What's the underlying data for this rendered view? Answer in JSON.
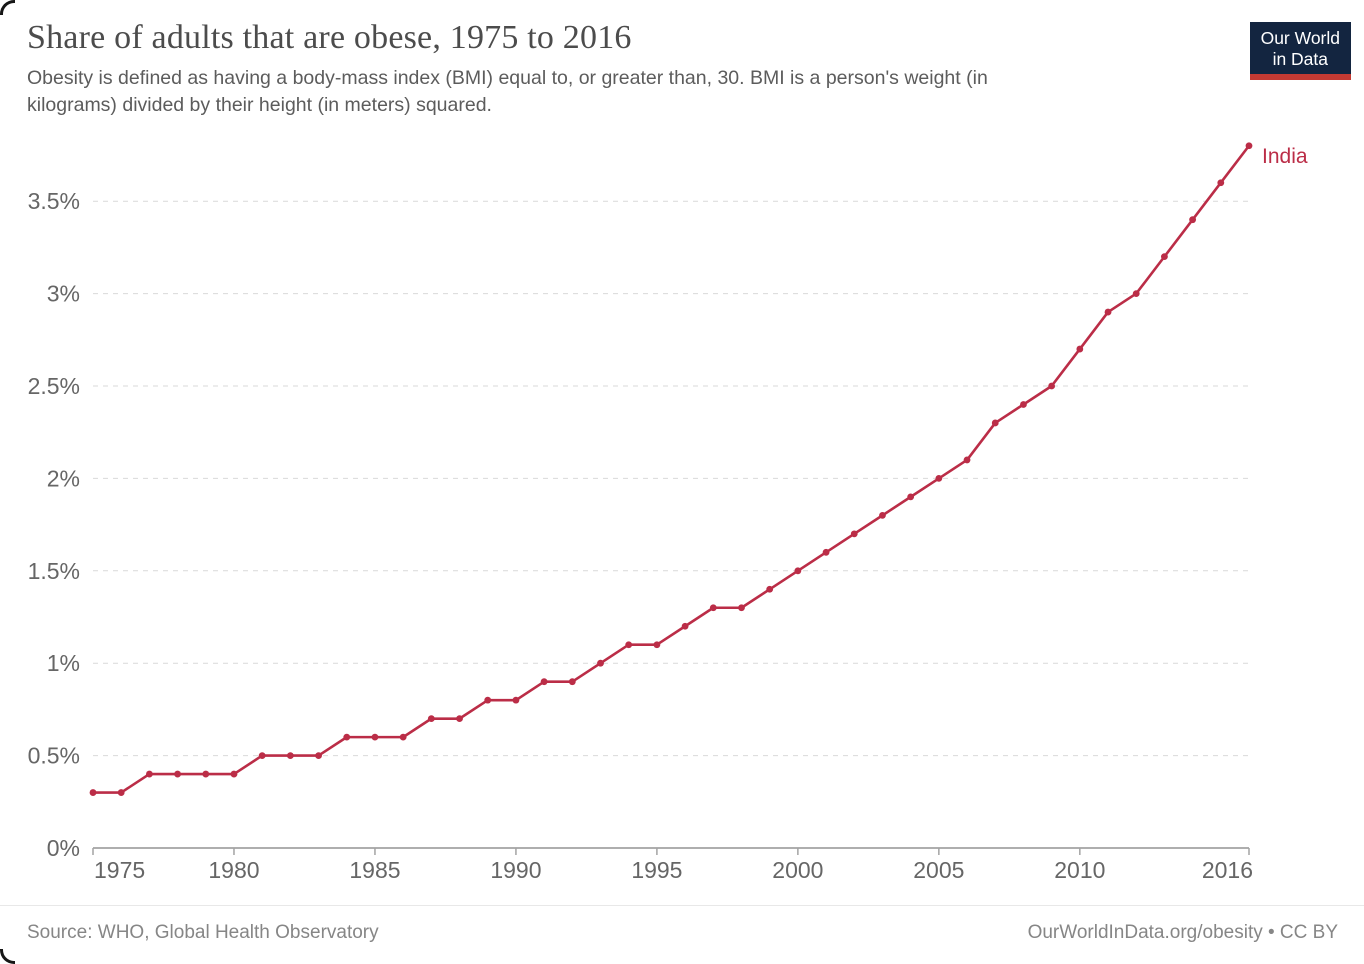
{
  "header": {
    "title": "Share of adults that are obese, 1975 to 2016",
    "subtitle_lines": [
      "Obesity is defined as having a body-mass index (BMI) equal to, or greater than, 30. BMI is a person's weight (in",
      "kilograms) divided by their height (in meters) squared."
    ],
    "logo": {
      "line1": "Our World",
      "line2": "in Data"
    }
  },
  "footer": {
    "source": "Source: WHO, Global Health Observatory",
    "attribution": "OurWorldInData.org/obesity • CC BY"
  },
  "colors": {
    "series_red": "#bb2d47",
    "logo_background": "#132540",
    "logo_stripe": "#c43a33",
    "grid": "#d9d9d9",
    "axis": "#a3a3a3",
    "tick_text": "#666666"
  },
  "chart_data": {
    "type": "line",
    "title": "Share of adults that are obese, 1975 to 2016",
    "xlabel": "",
    "ylabel": "",
    "xlim": [
      1975,
      2016
    ],
    "ylim": [
      0,
      3.8
    ],
    "grid": "horizontal-dashed",
    "legend": "end-of-line-label",
    "x_ticks": [
      1975,
      1980,
      1985,
      1990,
      1995,
      2000,
      2005,
      2010,
      2016
    ],
    "y_ticks": [
      0,
      0.5,
      1,
      1.5,
      2,
      2.5,
      3,
      3.5
    ],
    "y_tick_suffix": "%",
    "x": [
      1975,
      1976,
      1977,
      1978,
      1979,
      1980,
      1981,
      1982,
      1983,
      1984,
      1985,
      1986,
      1987,
      1988,
      1989,
      1990,
      1991,
      1992,
      1993,
      1994,
      1995,
      1996,
      1997,
      1998,
      1999,
      2000,
      2001,
      2002,
      2003,
      2004,
      2005,
      2006,
      2007,
      2008,
      2009,
      2010,
      2011,
      2012,
      2013,
      2014,
      2015,
      2016
    ],
    "series": [
      {
        "name": "India",
        "color": "#bb2d47",
        "values": [
          0.3,
          0.3,
          0.4,
          0.4,
          0.4,
          0.4,
          0.5,
          0.5,
          0.5,
          0.6,
          0.6,
          0.6,
          0.7,
          0.7,
          0.8,
          0.8,
          0.9,
          0.9,
          1.0,
          1.1,
          1.1,
          1.2,
          1.3,
          1.3,
          1.4,
          1.5,
          1.6,
          1.7,
          1.8,
          1.9,
          2.0,
          2.1,
          2.3,
          2.4,
          2.5,
          2.7,
          2.9,
          3.0,
          3.2,
          3.4,
          3.6,
          3.8
        ]
      }
    ]
  }
}
